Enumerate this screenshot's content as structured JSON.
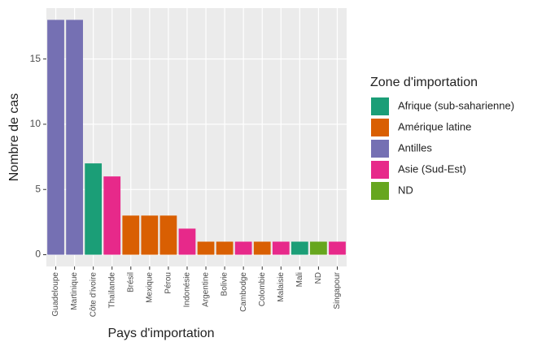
{
  "chart_data": {
    "type": "bar",
    "x_label": "Pays d'importation",
    "y_label": "Nombre de cas",
    "legend_title": "Zone d'importation",
    "categories": [
      "Guadeloupe",
      "Martinique",
      "Côte d'ivoire",
      "Thaïlande",
      "Brésil",
      "Mexique",
      "Pérou",
      "Indonésie",
      "Argentine",
      "Bolivie",
      "Cambodge",
      "Colombie",
      "Malaisie",
      "Mali",
      "ND",
      "Singapour"
    ],
    "series": [
      {
        "name": "Afrique (sub-saharienne)",
        "color": "#1B9E77",
        "values": [
          null,
          null,
          7,
          null,
          null,
          null,
          null,
          null,
          null,
          null,
          null,
          null,
          null,
          1,
          null,
          null
        ]
      },
      {
        "name": "Amérique latine",
        "color": "#D95F02",
        "values": [
          null,
          null,
          null,
          null,
          3,
          3,
          3,
          null,
          1,
          1,
          null,
          1,
          null,
          null,
          null,
          null
        ]
      },
      {
        "name": "Antilles",
        "color": "#7570B3",
        "values": [
          18,
          18,
          null,
          null,
          null,
          null,
          null,
          null,
          null,
          null,
          null,
          null,
          null,
          null,
          null,
          null
        ]
      },
      {
        "name": "Asie (Sud-Est)",
        "color": "#E7298A",
        "values": [
          null,
          null,
          null,
          6,
          null,
          null,
          null,
          2,
          null,
          null,
          1,
          null,
          1,
          null,
          null,
          1
        ]
      },
      {
        "name": "ND",
        "color": "#66A61E",
        "values": [
          null,
          null,
          null,
          null,
          null,
          null,
          null,
          null,
          null,
          null,
          null,
          null,
          null,
          null,
          1,
          null
        ]
      }
    ],
    "ylim": [
      -0.9,
      18.9
    ],
    "yticks": [
      0,
      5,
      10,
      15
    ],
    "grid": true,
    "legend": "right"
  }
}
